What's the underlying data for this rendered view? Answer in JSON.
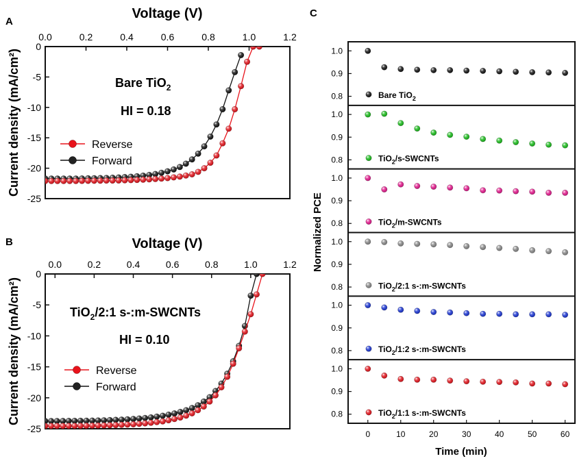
{
  "chart_data": [
    {
      "panel": "A",
      "type": "line",
      "xlabel": "Voltage (V)",
      "ylabel": "Current density (mA/cm²)",
      "xlim": [
        0,
        1.2
      ],
      "ylim": [
        -25,
        0
      ],
      "x_ticks": [
        "0.0",
        "0.2",
        "0.4",
        "0.6",
        "0.8",
        "1.0",
        "1.2"
      ],
      "y_ticks": [
        "0",
        "-5",
        "-10",
        "-15",
        "-20",
        "-25"
      ],
      "annotations": [
        {
          "base": "Bare TiO",
          "sub": "2",
          "tail": ""
        },
        {
          "base": "HI = 0.18",
          "sub": "",
          "tail": ""
        }
      ],
      "legend": {
        "placement": "lower-left",
        "entries": [
          "Reverse",
          "Forward"
        ]
      },
      "series": [
        {
          "name": "Reverse",
          "color": "#e8131b",
          "x": [
            0.0,
            0.03,
            0.06,
            0.09,
            0.12,
            0.15,
            0.18,
            0.21,
            0.24,
            0.27,
            0.3,
            0.33,
            0.36,
            0.39,
            0.42,
            0.45,
            0.48,
            0.51,
            0.54,
            0.57,
            0.6,
            0.63,
            0.66,
            0.69,
            0.72,
            0.75,
            0.78,
            0.81,
            0.84,
            0.87,
            0.9,
            0.93,
            0.96,
            0.99,
            1.02,
            1.05
          ],
          "y": [
            -22.1,
            -22.1,
            -22.1,
            -22.1,
            -22.1,
            -22.1,
            -22.08,
            -22.07,
            -22.06,
            -22.05,
            -22.03,
            -22.02,
            -22.01,
            -21.98,
            -21.95,
            -21.92,
            -21.88,
            -21.83,
            -21.77,
            -21.7,
            -21.62,
            -21.5,
            -21.38,
            -21.2,
            -21.0,
            -20.6,
            -20.0,
            -19.1,
            -17.9,
            -15.9,
            -13.5,
            -10.3,
            -6.5,
            -2.5,
            0.0,
            0.0
          ]
        },
        {
          "name": "Forward",
          "color": "#111111",
          "x": [
            0.0,
            0.03,
            0.06,
            0.09,
            0.12,
            0.15,
            0.18,
            0.21,
            0.24,
            0.27,
            0.3,
            0.33,
            0.36,
            0.39,
            0.42,
            0.45,
            0.48,
            0.51,
            0.54,
            0.57,
            0.6,
            0.63,
            0.66,
            0.69,
            0.72,
            0.75,
            0.78,
            0.81,
            0.84,
            0.87,
            0.9,
            0.93,
            0.96
          ],
          "y": [
            -21.7,
            -21.7,
            -21.7,
            -21.7,
            -21.7,
            -21.7,
            -21.68,
            -21.66,
            -21.64,
            -21.62,
            -21.6,
            -21.56,
            -21.52,
            -21.46,
            -21.4,
            -21.32,
            -21.22,
            -21.1,
            -20.95,
            -20.75,
            -20.5,
            -20.2,
            -19.8,
            -19.25,
            -18.55,
            -17.6,
            -16.4,
            -14.8,
            -12.8,
            -10.3,
            -7.2,
            -4.2,
            -1.4
          ]
        }
      ]
    },
    {
      "panel": "B",
      "type": "line",
      "xlabel": "Voltage (V)",
      "ylabel": "Current density (mA/cm²)",
      "xlim": [
        -0.05,
        1.2
      ],
      "ylim": [
        -25,
        0
      ],
      "x_ticks": [
        "0.0",
        "0.2",
        "0.4",
        "0.6",
        "0.8",
        "1.0",
        "1.2"
      ],
      "y_ticks": [
        "0",
        "-5",
        "-10",
        "-15",
        "-20",
        "-25"
      ],
      "annotations": [
        {
          "base": "TiO",
          "sub": "2",
          "tail": "/2:1 s-:m-SWCNTs"
        },
        {
          "base": "HI = 0.10",
          "sub": "",
          "tail": ""
        }
      ],
      "legend": {
        "placement": "lower-left",
        "entries": [
          "Reverse",
          "Forward"
        ]
      },
      "series": [
        {
          "name": "Reverse",
          "color": "#e8131b",
          "x": [
            -0.05,
            -0.02,
            0.01,
            0.04,
            0.07,
            0.1,
            0.13,
            0.16,
            0.19,
            0.22,
            0.25,
            0.28,
            0.31,
            0.34,
            0.37,
            0.4,
            0.43,
            0.46,
            0.49,
            0.52,
            0.55,
            0.58,
            0.61,
            0.64,
            0.67,
            0.7,
            0.73,
            0.76,
            0.79,
            0.82,
            0.85,
            0.88,
            0.91,
            0.94,
            0.97,
            1.0,
            1.03,
            1.06
          ],
          "y": [
            -24.55,
            -24.55,
            -24.55,
            -24.55,
            -24.54,
            -24.53,
            -24.52,
            -24.51,
            -24.5,
            -24.48,
            -24.46,
            -24.43,
            -24.4,
            -24.36,
            -24.32,
            -24.27,
            -24.2,
            -24.12,
            -24.03,
            -23.92,
            -23.8,
            -23.62,
            -23.42,
            -23.18,
            -22.88,
            -22.5,
            -22.0,
            -21.4,
            -20.6,
            -19.6,
            -18.3,
            -16.6,
            -14.5,
            -12.0,
            -9.3,
            -6.5,
            -3.3,
            0.0
          ]
        },
        {
          "name": "Forward",
          "color": "#111111",
          "x": [
            -0.05,
            -0.02,
            0.01,
            0.04,
            0.07,
            0.1,
            0.13,
            0.16,
            0.19,
            0.22,
            0.25,
            0.28,
            0.31,
            0.34,
            0.37,
            0.4,
            0.43,
            0.46,
            0.49,
            0.52,
            0.55,
            0.58,
            0.61,
            0.64,
            0.67,
            0.7,
            0.73,
            0.76,
            0.79,
            0.82,
            0.85,
            0.88,
            0.91,
            0.94,
            0.97,
            1.0,
            1.03
          ],
          "y": [
            -23.75,
            -23.75,
            -23.75,
            -23.74,
            -23.73,
            -23.72,
            -23.71,
            -23.7,
            -23.68,
            -23.66,
            -23.63,
            -23.6,
            -23.56,
            -23.52,
            -23.47,
            -23.41,
            -23.34,
            -23.26,
            -23.16,
            -23.04,
            -22.9,
            -22.72,
            -22.52,
            -22.28,
            -22.0,
            -21.65,
            -21.2,
            -20.6,
            -19.9,
            -18.9,
            -17.7,
            -16.1,
            -14.1,
            -11.6,
            -8.4,
            -3.5,
            0.0
          ]
        }
      ]
    },
    {
      "panel": "C",
      "type": "scatter",
      "xlabel": "Time (min)",
      "ylabel": "Normalized PCE",
      "xlim": [
        -6,
        63
      ],
      "x_ticks": [
        "0",
        "10",
        "20",
        "30",
        "40",
        "50",
        "60"
      ],
      "y_ticks": [
        "1.0",
        "0.9",
        "0.8"
      ],
      "ylim": [
        0.76,
        1.04
      ],
      "x": [
        0,
        5,
        10,
        15,
        20,
        25,
        30,
        35,
        40,
        45,
        50,
        55,
        60
      ],
      "series": [
        {
          "name_base": "Bare TiO",
          "name_sub": "2",
          "name_tail": "",
          "color": "#111111",
          "values": [
            1.0,
            0.928,
            0.92,
            0.917,
            0.915,
            0.915,
            0.913,
            0.912,
            0.91,
            0.908,
            0.906,
            0.905,
            0.903
          ]
        },
        {
          "name_base": "TiO",
          "name_sub": "2",
          "name_tail": "/s-SWCNTs",
          "color": "#19c01a",
          "values": [
            1.0,
            1.003,
            0.962,
            0.938,
            0.92,
            0.91,
            0.902,
            0.892,
            0.885,
            0.878,
            0.872,
            0.867,
            0.864
          ]
        },
        {
          "name_base": "TiO",
          "name_sub": "2",
          "name_tail": "/m-SWCNTs",
          "color": "#e8188f",
          "values": [
            1.0,
            0.95,
            0.972,
            0.965,
            0.962,
            0.958,
            0.955,
            0.946,
            0.945,
            0.942,
            0.94,
            0.935,
            0.935
          ]
        },
        {
          "name_base": "TiO",
          "name_sub": "2",
          "name_tail": "/2:1 s-:m-SWCNTs",
          "color": "#8a8a8a",
          "values": [
            1.0,
            0.998,
            0.992,
            0.99,
            0.988,
            0.985,
            0.98,
            0.976,
            0.972,
            0.968,
            0.962,
            0.958,
            0.953
          ]
        },
        {
          "name_base": "TiO",
          "name_sub": "2",
          "name_tail": "/1:2 s-:m-SWCNTs",
          "color": "#1a35d8",
          "values": [
            1.0,
            0.99,
            0.98,
            0.975,
            0.97,
            0.968,
            0.965,
            0.962,
            0.962,
            0.96,
            0.96,
            0.96,
            0.958
          ]
        },
        {
          "name_base": "TiO",
          "name_sub": "2",
          "name_tail": "/1:1 s-:m-SWCNTs",
          "color": "#e8131b",
          "values": [
            1.0,
            0.97,
            0.955,
            0.952,
            0.952,
            0.948,
            0.945,
            0.943,
            0.942,
            0.94,
            0.935,
            0.935,
            0.932
          ]
        }
      ]
    }
  ],
  "panel_labels": {
    "a": "A",
    "b": "B",
    "c": "C"
  }
}
